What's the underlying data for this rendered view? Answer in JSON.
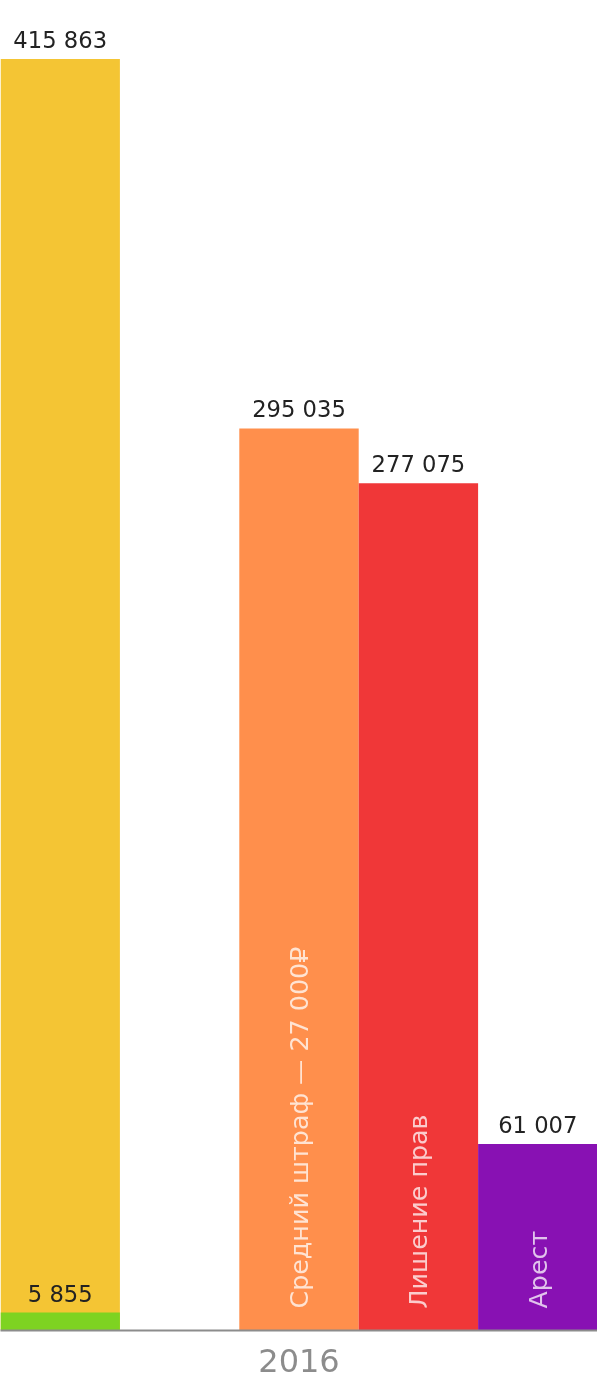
{
  "chart_data": {
    "type": "bar",
    "categories": [
      null,
      null,
      "Средний штраф — 27 000₽",
      "Лишение прав",
      "Арест"
    ],
    "xlabel": "2016",
    "series": [
      {
        "colors": [
          "#f4c534",
          null,
          "#ff8f4c",
          "#f03738",
          "#8811b3"
        ],
        "values": [
          415863,
          null,
          295035,
          277075,
          61007
        ],
        "value_labels": [
          "415 863",
          null,
          "295 035",
          "277 075",
          "61 007"
        ]
      },
      {
        "color": "#7ed321",
        "values": [
          5855,
          null,
          null,
          null,
          null
        ],
        "value_labels": [
          "5 855",
          null,
          null,
          null,
          null
        ]
      }
    ],
    "grid": false
  }
}
